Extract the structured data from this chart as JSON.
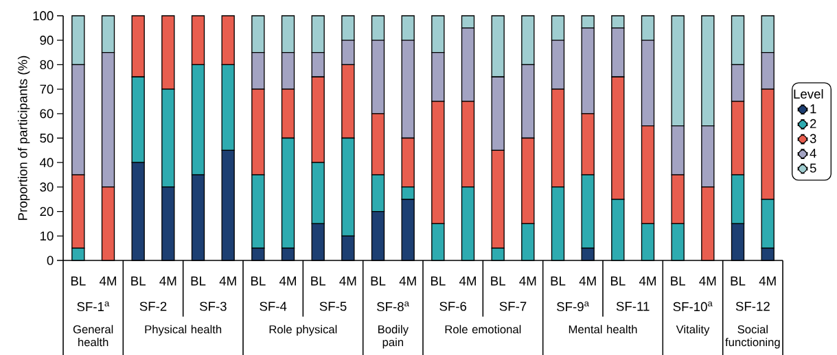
{
  "chart_data": {
    "type": "bar",
    "stacked": true,
    "categories": [
      "BL",
      "4M",
      "BL",
      "4M",
      "BL",
      "4M",
      "BL",
      "4M",
      "BL",
      "4M",
      "BL",
      "4M",
      "BL",
      "4M",
      "BL",
      "4M",
      "BL",
      "4M",
      "BL",
      "4M",
      "BL",
      "4M",
      "BL",
      "4M"
    ],
    "ylabel": "Proportion of participants (%)",
    "ylim": [
      0,
      100
    ],
    "yticks": [
      0,
      10,
      20,
      30,
      40,
      50,
      60,
      70,
      80,
      90,
      100
    ],
    "legend": "right",
    "legend_title": "Level",
    "series": [
      {
        "name": "1",
        "color": "#1d3f72",
        "values": [
          0,
          0,
          40,
          30,
          35,
          45,
          5,
          5,
          15,
          10,
          20,
          25,
          0,
          0,
          0,
          0,
          0,
          5,
          0,
          0,
          0,
          0,
          15,
          5
        ]
      },
      {
        "name": "2",
        "color": "#2eabb0",
        "values": [
          5,
          0,
          35,
          40,
          45,
          35,
          30,
          45,
          25,
          40,
          15,
          5,
          15,
          30,
          5,
          15,
          30,
          30,
          25,
          15,
          15,
          0,
          20,
          20
        ]
      },
      {
        "name": "3",
        "color": "#e85e4f",
        "values": [
          30,
          30,
          25,
          30,
          20,
          20,
          35,
          20,
          35,
          30,
          25,
          20,
          50,
          35,
          40,
          35,
          40,
          25,
          50,
          40,
          20,
          30,
          30,
          45
        ]
      },
      {
        "name": "4",
        "color": "#a3a3c2",
        "values": [
          45,
          55,
          0,
          0,
          0,
          0,
          15,
          15,
          10,
          10,
          30,
          40,
          20,
          30,
          30,
          30,
          20,
          35,
          20,
          35,
          20,
          25,
          15,
          15
        ]
      },
      {
        "name": "5",
        "color": "#9fcdd0",
        "values": [
          20,
          15,
          0,
          0,
          0,
          0,
          15,
          15,
          15,
          10,
          10,
          10,
          15,
          5,
          25,
          20,
          10,
          5,
          5,
          10,
          45,
          45,
          20,
          15
        ]
      }
    ],
    "annotations": [
      "SF-1$^{a}$",
      "SF-2",
      "SF-3",
      "SF-4",
      "SF-5",
      "SF-8$^{a}$",
      "SF-6",
      "SF-7",
      "SF-9$^{a}$",
      "SF-11",
      "SF-10$^{a}$",
      "SF-12",
      "General health",
      "Physical health",
      "Role physical",
      "Bodily pain",
      "Role emotional",
      "Mental health",
      "Vitality",
      "Social functioning"
    ]
  }
}
